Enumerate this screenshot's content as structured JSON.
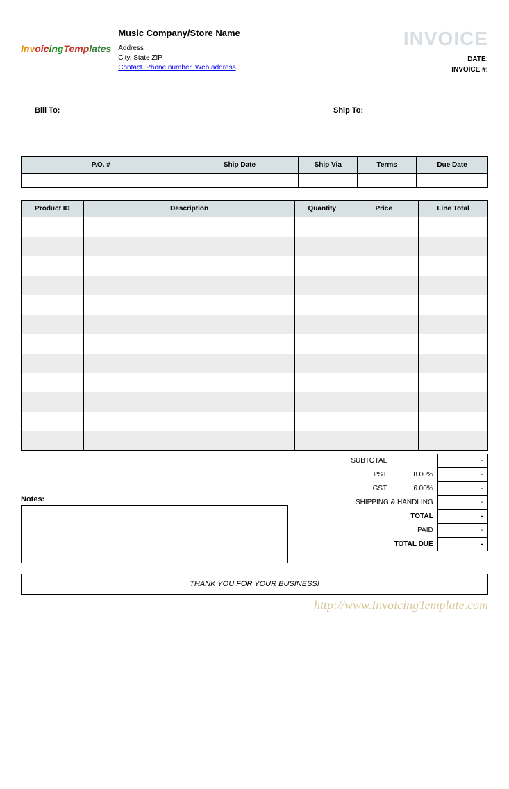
{
  "header": {
    "logo_text": "InvoicingTemplates",
    "company_name": "Music Company/Store Name",
    "address_line1": "Address",
    "address_line2": "City, State ZIP",
    "contact_link": "Contact. Phone number. Web address",
    "invoice_title": "INVOICE",
    "date_label": "DATE:",
    "invoice_num_label": "INVOICE #:"
  },
  "bill_ship": {
    "bill_to_label": "Bill To:",
    "ship_to_label": "Ship To:"
  },
  "order_table": {
    "headers": {
      "po": "P.O. #",
      "ship_date": "Ship Date",
      "ship_via": "Ship Via",
      "terms": "Terms",
      "due_date": "Due Date"
    },
    "row": {
      "po": "",
      "ship_date": "",
      "ship_via": "",
      "terms": "",
      "due_date": ""
    },
    "header_bg": "#d7e0e2",
    "border_color": "#000000"
  },
  "items_table": {
    "headers": {
      "product_id": "Product ID",
      "description": "Description",
      "quantity": "Quantity",
      "price": "Price",
      "line_total": "Line Total"
    },
    "row_count": 12,
    "alt_row_bg": "#ececec",
    "header_bg": "#d7e0e2",
    "col_widths": {
      "product_id": 90,
      "description": 305,
      "quantity": 78,
      "price": 100,
      "line_total": 100
    }
  },
  "totals": {
    "subtotal_label": "SUBTOTAL",
    "subtotal_value": "-",
    "pst_label": "PST",
    "pst_pct": "8.00%",
    "pst_value": "-",
    "gst_label": "GST",
    "gst_pct": "6.00%",
    "gst_value": "-",
    "shipping_label": "SHIPPING & HANDLING",
    "shipping_value": "-",
    "total_label": "TOTAL",
    "total_value": "-",
    "paid_label": "PAID",
    "paid_value": "-",
    "total_due_label": "TOTAL DUE",
    "total_due_value": "-"
  },
  "notes": {
    "label": "Notes:"
  },
  "footer": {
    "thank_you": "THANK YOU FOR YOUR BUSINESS!",
    "watermark": "http://www.InvoicingTemplate.com"
  },
  "colors": {
    "title_gray": "#d8dde2",
    "watermark": "#d8c898",
    "link": "#0000ee"
  }
}
